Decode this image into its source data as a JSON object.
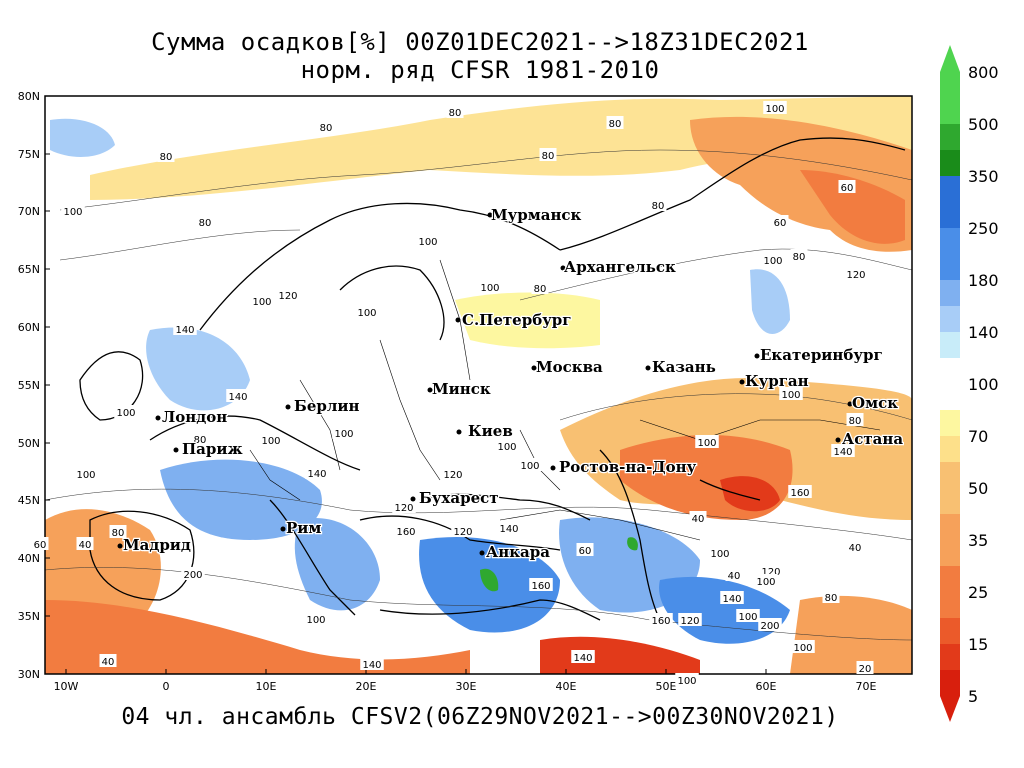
{
  "title": {
    "line1": "Сумма осадков[%] 00Z01DEC2021-->18Z31DEC2021",
    "line2": "норм. ряд CFSR 1981-2010"
  },
  "footer": "04 чл. ансамбль CFSV2(06Z29NOV2021-->00Z30NOV2021)",
  "axes": {
    "lat_labels": [
      "80N",
      "75N",
      "70N",
      "65N",
      "60N",
      "55N",
      "50N",
      "45N",
      "40N",
      "35N",
      "30N"
    ],
    "lon_labels": [
      "10W",
      "0",
      "10E",
      "20E",
      "30E",
      "40E",
      "50E",
      "60E",
      "70E"
    ]
  },
  "cities": [
    {
      "name": "Мурманск"
    },
    {
      "name": "Архангельск"
    },
    {
      "name": "С.Петербург"
    },
    {
      "name": "Москва"
    },
    {
      "name": "Казань"
    },
    {
      "name": "Екатеринбург"
    },
    {
      "name": "Курган"
    },
    {
      "name": "Омск"
    },
    {
      "name": "Астана"
    },
    {
      "name": "Минск"
    },
    {
      "name": "Берлин"
    },
    {
      "name": "Лондон"
    },
    {
      "name": "Париж"
    },
    {
      "name": "Киев"
    },
    {
      "name": "Ростов-на-Дону"
    },
    {
      "name": "Бухарест"
    },
    {
      "name": "Рим"
    },
    {
      "name": "Мадрид"
    },
    {
      "name": "Анкара"
    }
  ],
  "contour_labels": [
    "80",
    "80",
    "80",
    "80",
    "80",
    "80",
    "100",
    "80",
    "100",
    "60",
    "60",
    "100",
    "80",
    "120",
    "100",
    "80",
    "100",
    "100",
    "100",
    "120",
    "140",
    "100",
    "100",
    "80",
    "100",
    "80",
    "140",
    "100",
    "100",
    "120",
    "160",
    "120",
    "140",
    "100",
    "120",
    "140",
    "100",
    "40",
    "60",
    "40",
    "140",
    "100",
    "160",
    "120",
    "100",
    "80",
    "100",
    "40",
    "100",
    "140",
    "200",
    "120",
    "100",
    "140",
    "160",
    "100",
    "80",
    "100",
    "40",
    "60",
    "40",
    "20",
    "140",
    "160",
    "200"
  ],
  "legend": {
    "labels": [
      "800",
      "500",
      "350",
      "250",
      "180",
      "140",
      "100",
      "70",
      "50",
      "35",
      "25",
      "15",
      "5"
    ],
    "upper_colors": [
      "#4fd44f",
      "#2fa82f",
      "#1a8c1a",
      "#2a6fd6",
      "#4a8ee8",
      "#7fb0f0",
      "#a8cdf7",
      "#c8ecf9"
    ],
    "lower_colors": [
      "#fdf7a0",
      "#fde08a",
      "#f8c072",
      "#f6a15a",
      "#f27c40",
      "#eb5a2a",
      "#e23a1a",
      "#d81f0d"
    ]
  }
}
